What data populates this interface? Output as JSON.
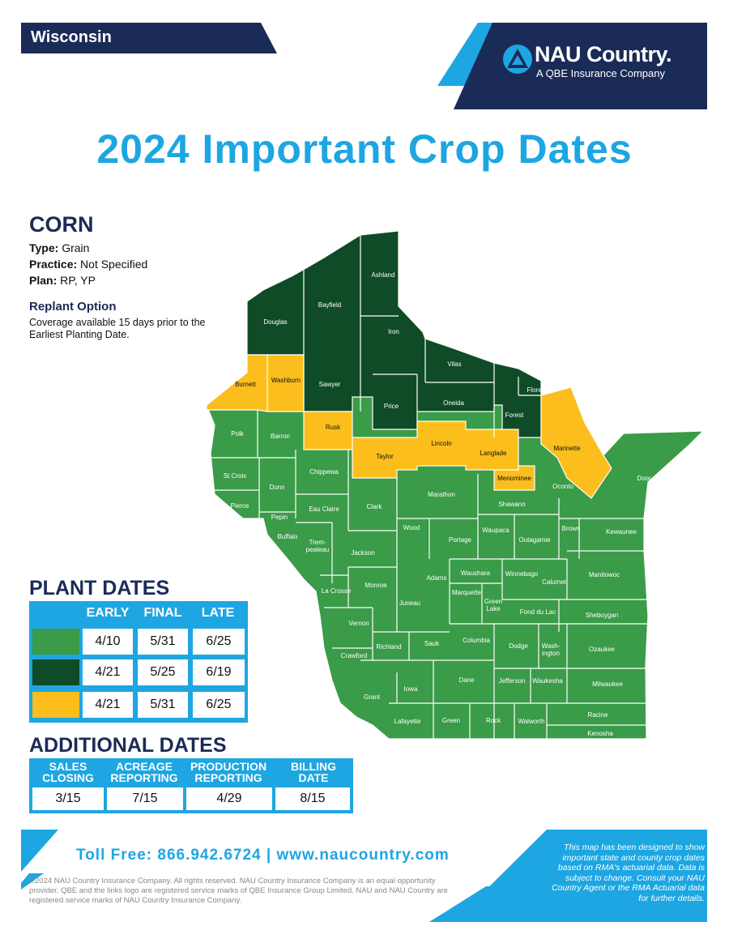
{
  "header": {
    "state": "Wisconsin",
    "brand": "NAU Country.",
    "brand_sub": "A QBE Insurance Company",
    "title": "2024 Important Crop Dates"
  },
  "crop": {
    "name": "CORN",
    "type_label": "Type:",
    "type_value": "Grain",
    "practice_label": "Practice:",
    "practice_value": "Not Specified",
    "plan_label": "Plan:",
    "plan_value": "RP, YP",
    "replant_title": "Replant Option",
    "replant_text": "Coverage available 15 days prior to the Earliest Planting Date."
  },
  "plant_dates": {
    "title": "PLANT DATES",
    "headers": [
      "EARLY",
      "FINAL",
      "LATE"
    ],
    "rows": [
      {
        "color": "#3a9b48",
        "early": "4/10",
        "final": "5/31",
        "late": "6/25"
      },
      {
        "color": "#0f4b26",
        "early": "4/21",
        "final": "5/25",
        "late": "6/19"
      },
      {
        "color": "#fbbe1c",
        "early": "4/21",
        "final": "5/31",
        "late": "6/25"
      }
    ]
  },
  "additional_dates": {
    "title": "ADDITIONAL DATES",
    "cols": [
      {
        "h1": "SALES",
        "h2": "CLOSING",
        "value": "3/15"
      },
      {
        "h1": "ACREAGE",
        "h2": "REPORTING",
        "value": "7/15"
      },
      {
        "h1": "PRODUCTION",
        "h2": "REPORTING",
        "value": "4/29"
      },
      {
        "h1": "BILLING",
        "h2": "DATE",
        "value": "8/15"
      }
    ]
  },
  "footer": {
    "tollfree": "Toll Free: 866.942.6724 | www.naucountry.com",
    "copyright": "©2024 NAU Country Insurance Company. All rights reserved. NAU Country Insurance Company is an equal opportunity provider. QBE and the links logo are registered service marks of QBE Insurance Group Limited. NAU and NAU Country are registered service marks of NAU Country Insurance Company.",
    "disclaimer": "This map has been designed to show important state and county crop dates based on RMA's actuarial data. Data is subject to change. Consult your NAU Country Agent or the RMA Actuarial data for further details."
  },
  "colors": {
    "light": "#3a9b48",
    "dark": "#0f4b26",
    "yellow": "#fbbe1c",
    "accent": "#1da6e2",
    "navy": "#1b2b57"
  },
  "map": {
    "counties": {
      "douglas": "Douglas",
      "bayfield": "Bayfield",
      "ashland": "Ashland",
      "iron": "Iron",
      "vilas": "Vilas",
      "florence": "Florence",
      "forest": "Forest",
      "oneida": "Oneida",
      "price": "Price",
      "sawyer": "Sawyer",
      "burnett": "Burnett",
      "washburn": "Washburn",
      "rusk": "Rusk",
      "taylor": "Taylor",
      "lincoln": "Lincoln",
      "langlade": "Langlade",
      "marinette": "Marinette",
      "menominee": "Menominee",
      "polk": "Polk",
      "barron": "Barron",
      "stcroix": "St Croix",
      "dunn": "Dunn",
      "chippewa": "Chippewa",
      "pierce": "Pierce",
      "pepin": "Pepin",
      "eauclaire": "Eau Claire",
      "clark": "Clark",
      "marathon": "Marathon",
      "shawano": "Shawano",
      "oconto": "Oconto",
      "door": "Door",
      "buffalo": "Buffalo",
      "trempealeau1": "Trem-",
      "trempealeau2": "pealeau",
      "jackson": "Jackson",
      "wood": "Wood",
      "portage": "Portage",
      "waupaca": "Waupaca",
      "outagamie": "Outagamie",
      "brown": "Brown",
      "kewaunee": "Kewaunee",
      "manitowoc": "Manitowoc",
      "calumet": "Calumet",
      "winnebago": "Winnebago",
      "waushara": "Waushara",
      "adams": "Adams",
      "marquette": "Marquette",
      "greenlake1": "Green",
      "greenlake2": "Lake",
      "fonddulac": "Fond du Lac",
      "sheboygan": "Sheboygan",
      "juneau": "Juneau",
      "monroe": "Monroe",
      "lacrosse": "La Crosse",
      "vernon": "Vernon",
      "crawford": "Crawford",
      "richland": "Richland",
      "sauk": "Sauk",
      "columbia": "Columbia",
      "dodge": "Dodge",
      "washington1": "Wash-",
      "washington2": "ington",
      "ozaukee": "Ozaukee",
      "grant": "Grant",
      "iowa": "Iowa",
      "dane": "Dane",
      "jefferson": "Jefferson",
      "waukesha": "Waukesha",
      "milwaukee": "Milwaukee",
      "lafayette": "Lafayette",
      "green": "Green",
      "rock": "Rock",
      "walworth": "Walworth",
      "racine": "Racine",
      "kenosha": "Kenosha"
    }
  }
}
